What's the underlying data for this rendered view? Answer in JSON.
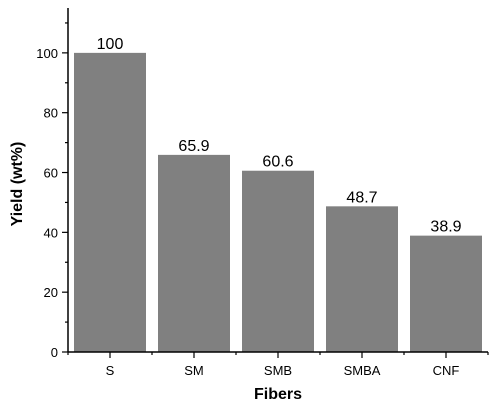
{
  "chart_data": {
    "type": "bar",
    "categories": [
      "S",
      "SM",
      "SMB",
      "SMBA",
      "CNF"
    ],
    "values": [
      100,
      65.9,
      60.6,
      48.7,
      38.9
    ],
    "data_labels": [
      "100",
      "65.9",
      "60.6",
      "48.7",
      "38.9"
    ],
    "xlabel": "Fibers",
    "ylabel": "Yield (wt%)",
    "ylim": [
      0,
      115
    ],
    "yticks": [
      0,
      20,
      40,
      60,
      80,
      100
    ],
    "grid": false,
    "bar_color": "#808080"
  }
}
